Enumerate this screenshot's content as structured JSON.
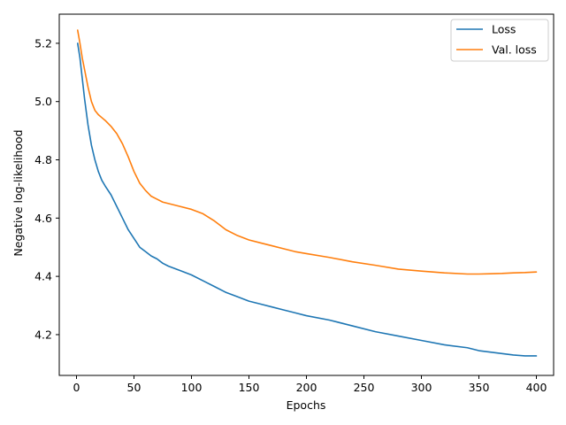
{
  "chart_data": {
    "type": "line",
    "title": "",
    "xlabel": "Epochs",
    "ylabel": "Negative log-likelihood",
    "xlim": [
      -15,
      415
    ],
    "ylim": [
      4.06,
      5.3
    ],
    "xticks": [
      0,
      50,
      100,
      150,
      200,
      250,
      300,
      350,
      400
    ],
    "xtick_labels": [
      "0",
      "50",
      "100",
      "150",
      "200",
      "250",
      "300",
      "350",
      "400"
    ],
    "yticks": [
      4.2,
      4.4,
      4.6,
      4.8,
      5.0,
      5.2
    ],
    "ytick_labels": [
      "4.2",
      "4.4",
      "4.6",
      "4.8",
      "5.0",
      "5.2"
    ],
    "grid": false,
    "legend_position": "top-right",
    "series": [
      {
        "name": "Loss",
        "color": "#1f77b4",
        "x": [
          1,
          3,
          5,
          7,
          10,
          13,
          16,
          19,
          22,
          25,
          30,
          35,
          40,
          45,
          50,
          55,
          60,
          65,
          70,
          75,
          80,
          90,
          100,
          110,
          120,
          130,
          140,
          150,
          160,
          170,
          180,
          190,
          200,
          220,
          240,
          260,
          280,
          300,
          320,
          340,
          350,
          360,
          370,
          380,
          390,
          400
        ],
        "y": [
          5.2,
          5.15,
          5.08,
          5.01,
          4.92,
          4.85,
          4.8,
          4.76,
          4.73,
          4.71,
          4.68,
          4.64,
          4.6,
          4.56,
          4.53,
          4.5,
          4.485,
          4.47,
          4.46,
          4.445,
          4.435,
          4.42,
          4.405,
          4.385,
          4.365,
          4.345,
          4.33,
          4.315,
          4.305,
          4.295,
          4.285,
          4.275,
          4.265,
          4.25,
          4.23,
          4.21,
          4.195,
          4.18,
          4.165,
          4.155,
          4.145,
          4.14,
          4.135,
          4.13,
          4.127,
          4.127
        ]
      },
      {
        "name": "Val. loss",
        "color": "#ff7f0e",
        "x": [
          1,
          3,
          5,
          7,
          10,
          13,
          16,
          19,
          22,
          25,
          30,
          35,
          40,
          45,
          50,
          55,
          60,
          65,
          70,
          75,
          80,
          90,
          100,
          110,
          120,
          130,
          140,
          150,
          160,
          170,
          180,
          190,
          200,
          220,
          240,
          260,
          280,
          300,
          320,
          340,
          350,
          360,
          370,
          380,
          390,
          400
        ],
        "y": [
          5.245,
          5.2,
          5.15,
          5.11,
          5.05,
          5.0,
          4.97,
          4.955,
          4.945,
          4.935,
          4.915,
          4.89,
          4.855,
          4.81,
          4.76,
          4.72,
          4.695,
          4.675,
          4.665,
          4.655,
          4.65,
          4.64,
          4.63,
          4.615,
          4.59,
          4.56,
          4.54,
          4.525,
          4.515,
          4.505,
          4.495,
          4.485,
          4.478,
          4.465,
          4.45,
          4.438,
          4.425,
          4.418,
          4.412,
          4.408,
          4.408,
          4.409,
          4.41,
          4.412,
          4.413,
          4.415
        ]
      }
    ]
  }
}
